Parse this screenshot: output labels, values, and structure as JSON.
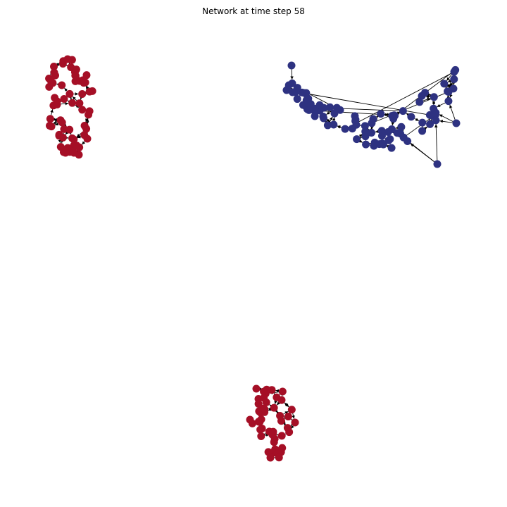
{
  "figure": {
    "title": "Network at time step 58"
  },
  "colors": {
    "community_red": "#a50f26",
    "community_blue": "#2e3281",
    "edge": "#000000",
    "background": "#ffffff"
  },
  "diagram": {
    "type": "network-graph",
    "node_shape": "circle",
    "edges": "directed arrows",
    "communities": [
      {
        "name": "cluster-top-left",
        "color": "red"
      },
      {
        "name": "cluster-top-right",
        "color": "blue"
      },
      {
        "name": "cluster-bottom",
        "color": "red"
      }
    ]
  }
}
